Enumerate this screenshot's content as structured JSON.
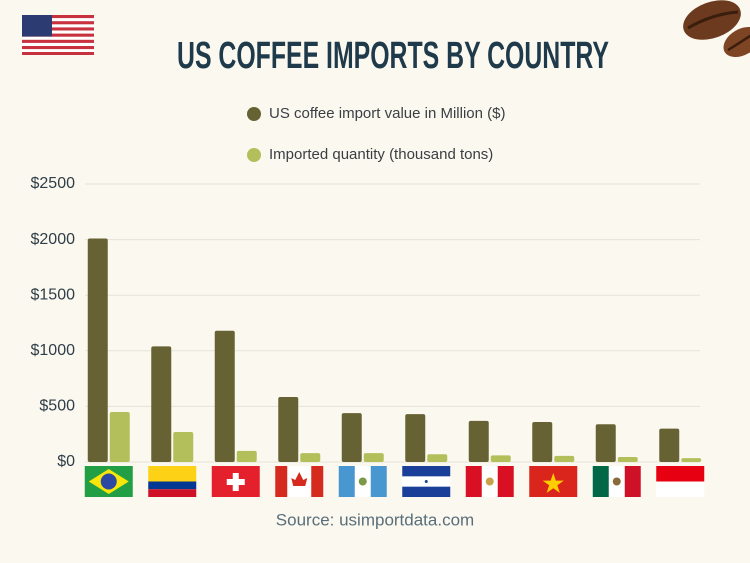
{
  "chart_data": {
    "type": "bar",
    "title": "US COFFEE IMPORTS BY COUNTRY",
    "categories": [
      null,
      null,
      null,
      null,
      null,
      null,
      null,
      null,
      null,
      null
    ],
    "series": [
      {
        "name": "US coffee import value in Million ($)",
        "color": "#666233",
        "values": [
          2010,
          1040,
          1180,
          585,
          440,
          430,
          370,
          360,
          340,
          300
        ]
      },
      {
        "name": "Imported quantity (thousand tons)",
        "color": "#b3bf5a",
        "values": [
          450,
          270,
          100,
          80,
          80,
          70,
          60,
          55,
          45,
          35
        ]
      }
    ],
    "ylim": [
      0,
      2500
    ],
    "yticks": [
      {
        "value": 0,
        "label": "$0"
      },
      {
        "value": 500,
        "label": "$500"
      },
      {
        "value": 1000,
        "label": "$1000"
      },
      {
        "value": 1500,
        "label": "$1500"
      },
      {
        "value": 2000,
        "label": "$2000"
      },
      {
        "value": 2500,
        "label": "$2500"
      }
    ],
    "grid": true,
    "source": "Source: usimportdata.com"
  }
}
